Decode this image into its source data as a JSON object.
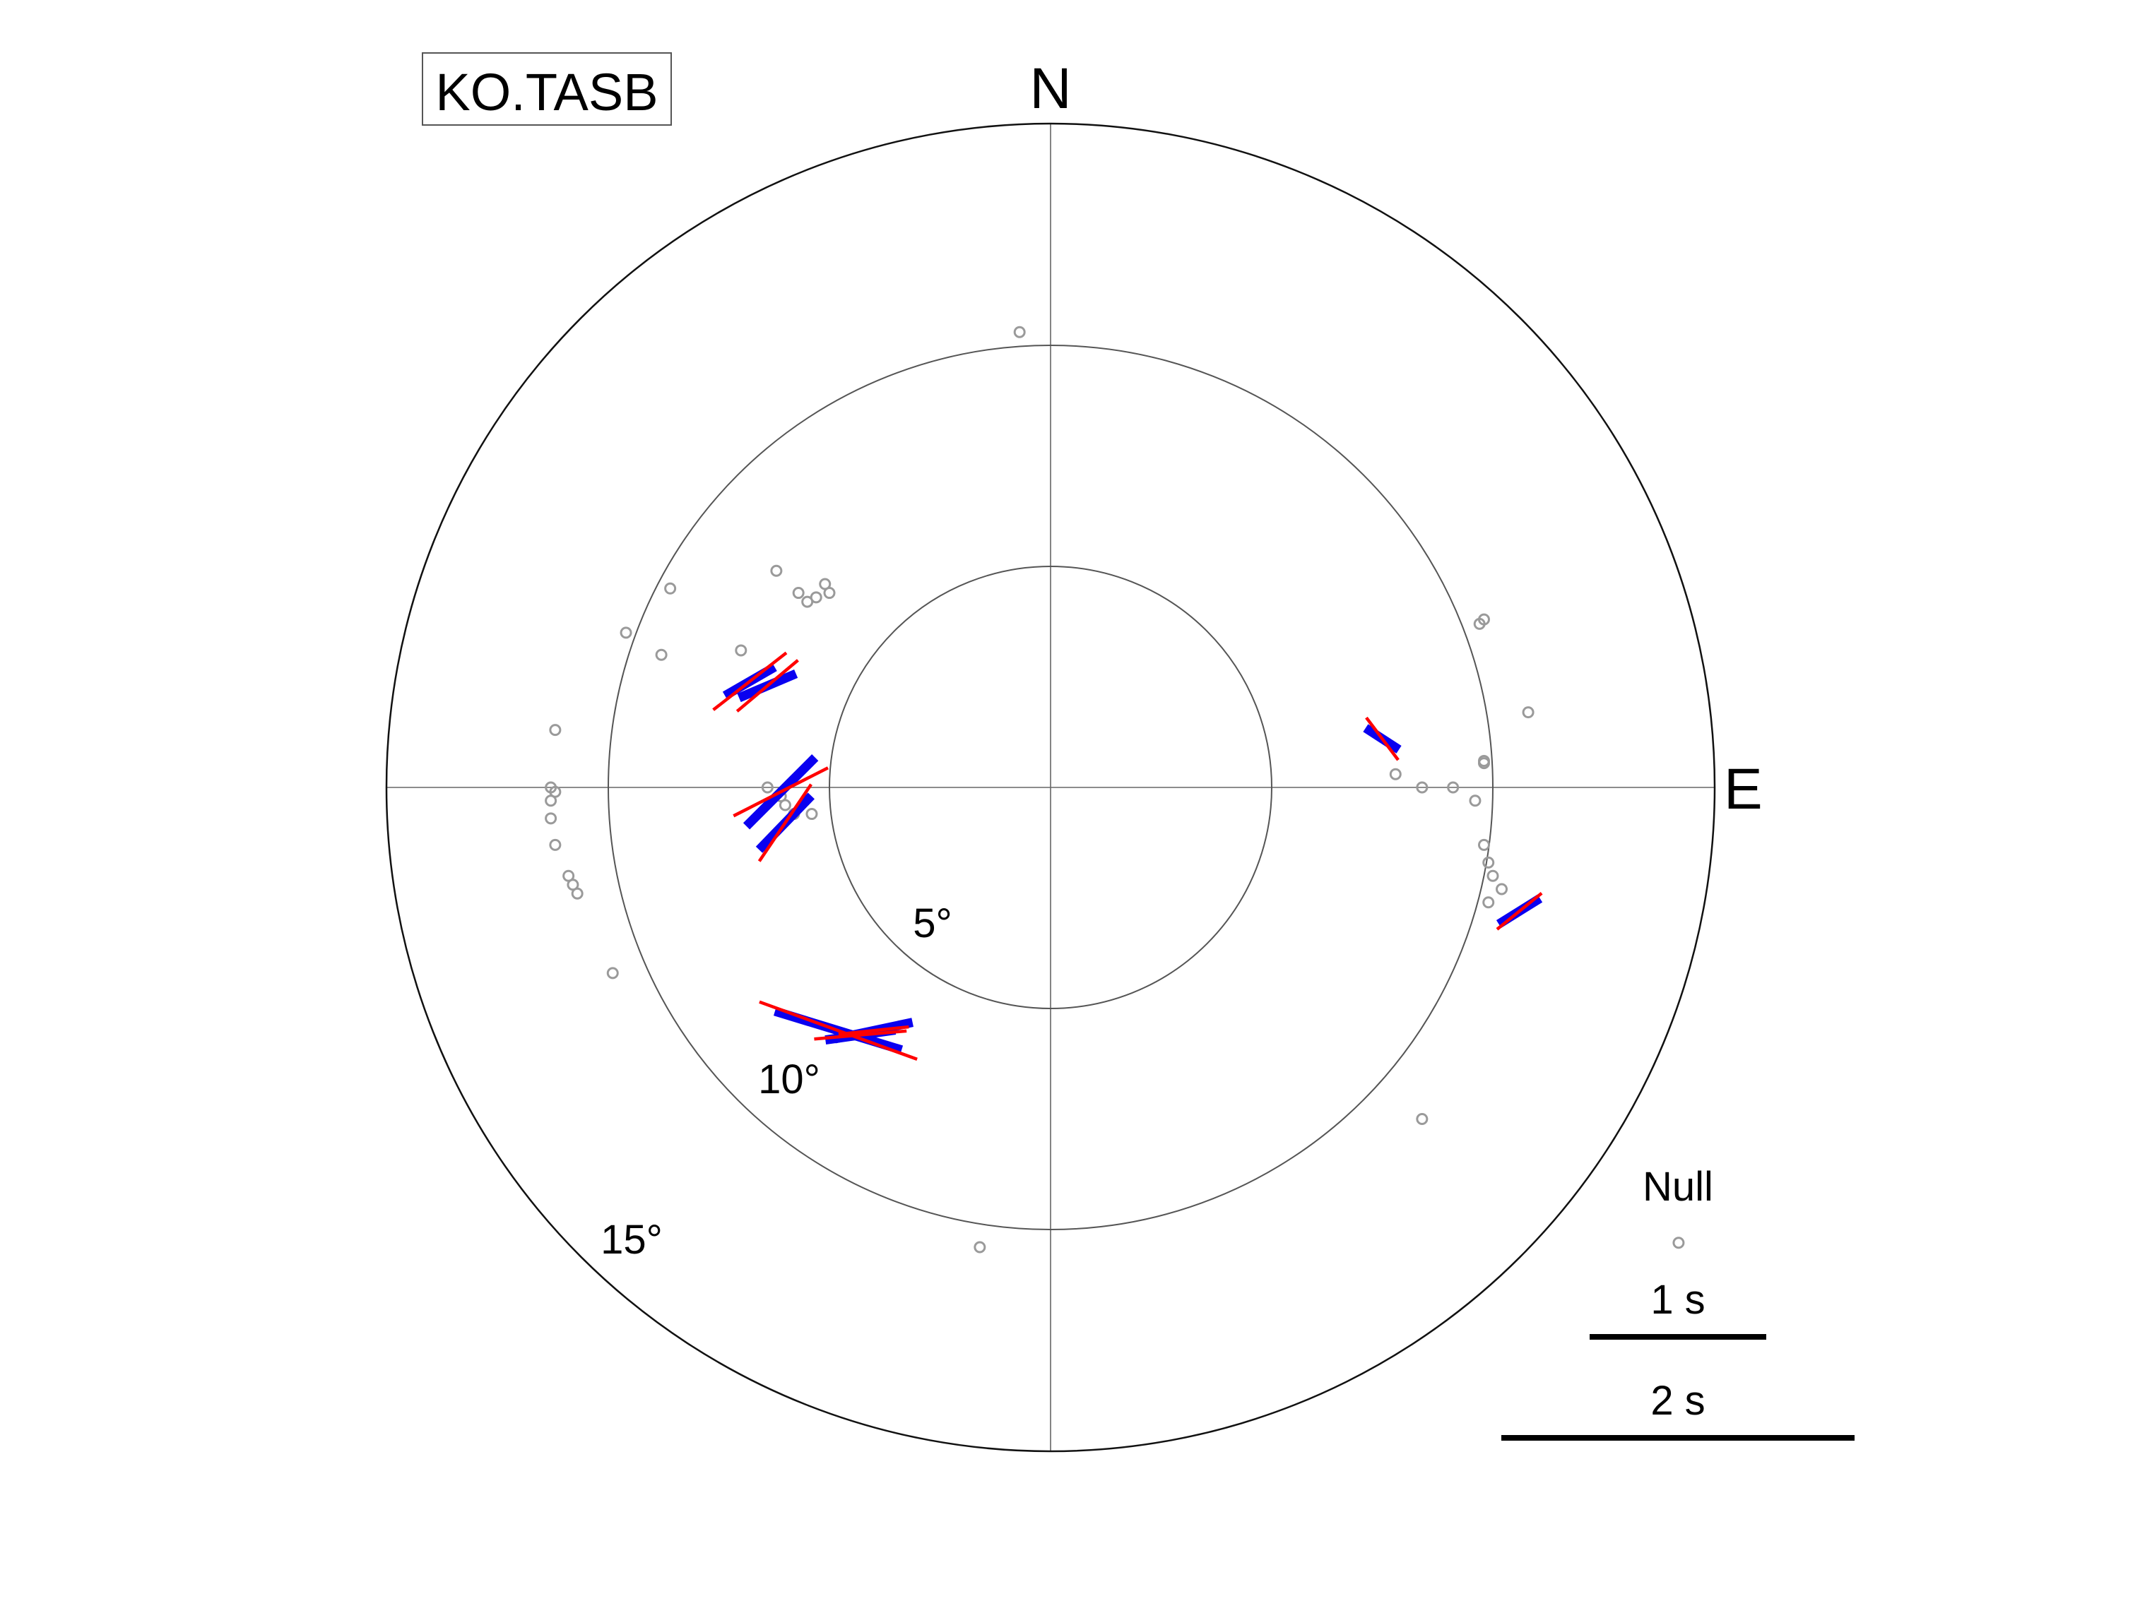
{
  "chart_data": {
    "type": "scatter",
    "projection": "polar",
    "station": "KO.TASB",
    "north_label": "N",
    "east_label": "E",
    "rings": [
      {
        "value": 5,
        "label": "5°"
      },
      {
        "value": 10,
        "label": "10°"
      },
      {
        "value": 15,
        "label": "15°"
      }
    ],
    "legend": {
      "null_label": "Null",
      "scale_bars": [
        {
          "delay_s": 1,
          "label": "1 s"
        },
        {
          "delay_s": 2,
          "label": "2 s"
        }
      ]
    },
    "colors": {
      "blue": "#0a00f0",
      "red": "#ff0000",
      "null": "#9a9a9a"
    },
    "splits": [
      {
        "x": -6.8,
        "y": 2.4,
        "blue": {
          "az": 60,
          "len": 0.65
        },
        "red": {
          "az": 52,
          "len": 1.05
        }
      },
      {
        "x": -6.4,
        "y": 2.3,
        "blue": {
          "az": 67,
          "len": 0.7
        },
        "red": {
          "az": 50,
          "len": 0.9
        }
      },
      {
        "x": -6.1,
        "y": -0.1,
        "blue": {
          "az": 45,
          "len": 1.1
        },
        "red": {
          "az": 63,
          "len": 1.2
        }
      },
      {
        "x": -6.0,
        "y": -0.8,
        "blue": {
          "az": 44,
          "len": 0.85
        },
        "red": {
          "az": 34,
          "len": 1.05
        }
      },
      {
        "x": -4.8,
        "y": -5.5,
        "blue": {
          "az": 107,
          "len": 1.5
        },
        "red": {
          "az": 110,
          "len": 1.9
        }
      },
      {
        "x": -4.3,
        "y": -5.6,
        "blue": {
          "az": 82,
          "len": 0.8
        },
        "red": {
          "az": 85,
          "len": 1.05
        }
      },
      {
        "x": -4.0,
        "y": -5.5,
        "blue": {
          "az": 78,
          "len": 0.9
        },
        "red": {
          "az": 84,
          "len": 0.8
        }
      },
      {
        "x": 7.5,
        "y": 1.1,
        "blue": {
          "az": 123,
          "len": 0.45
        },
        "red": {
          "az": 143,
          "len": 0.6
        }
      },
      {
        "x": 10.6,
        "y": -2.8,
        "blue": {
          "az": 58,
          "len": 0.55
        },
        "red": {
          "az": 51,
          "len": 0.65
        }
      }
    ],
    "nulls": [
      [
        -0.7,
        10.3
      ],
      [
        -6.2,
        4.9
      ],
      [
        -5.1,
        4.6
      ],
      [
        -5.7,
        4.4
      ],
      [
        -5.0,
        4.4
      ],
      [
        -5.3,
        4.3
      ],
      [
        -5.5,
        4.2
      ],
      [
        -8.6,
        4.5
      ],
      [
        -9.6,
        3.5
      ],
      [
        -8.8,
        3.0
      ],
      [
        -7.0,
        3.1
      ],
      [
        -11.2,
        1.3
      ],
      [
        -11.3,
        0.0
      ],
      [
        -11.2,
        -0.1
      ],
      [
        -11.3,
        -0.3
      ],
      [
        -11.3,
        -0.7
      ],
      [
        -11.2,
        -1.3
      ],
      [
        -10.9,
        -2.0
      ],
      [
        -10.8,
        -2.2
      ],
      [
        -10.7,
        -2.4
      ],
      [
        -9.9,
        -4.2
      ],
      [
        -6.4,
        0.0
      ],
      [
        -6.1,
        -0.2
      ],
      [
        -6.0,
        -0.4
      ],
      [
        -5.8,
        -0.6
      ],
      [
        -5.4,
        -0.6
      ],
      [
        9.7,
        3.7
      ],
      [
        9.8,
        3.8
      ],
      [
        10.8,
        1.7
      ],
      [
        9.8,
        0.6
      ],
      [
        9.8,
        0.55
      ],
      [
        7.8,
        0.3
      ],
      [
        8.4,
        0.0
      ],
      [
        9.1,
        0.0
      ],
      [
        9.6,
        -0.3
      ],
      [
        9.8,
        -1.3
      ],
      [
        9.9,
        -1.7
      ],
      [
        10.0,
        -2.0
      ],
      [
        10.2,
        -2.3
      ],
      [
        9.9,
        -2.6
      ],
      [
        8.4,
        -7.5
      ],
      [
        -1.6,
        -10.4
      ]
    ],
    "legend_null_point": [
      14.2,
      -10.3
    ]
  }
}
